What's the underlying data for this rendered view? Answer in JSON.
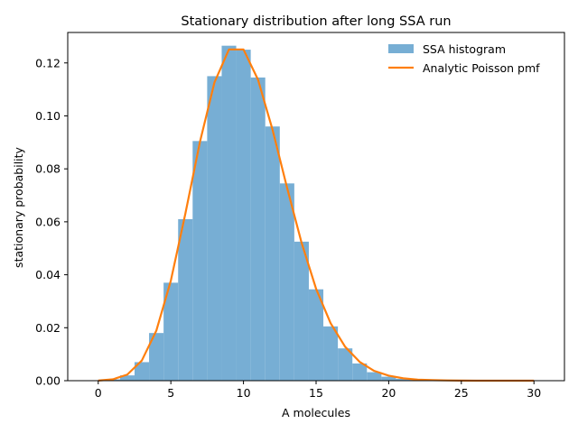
{
  "chart_data": {
    "type": "bar",
    "title": "Stationary distribution after long SSA run",
    "xlabel": "A molecules",
    "ylabel": "stationary probability",
    "xlim": [
      -2.1,
      32.1
    ],
    "ylim": [
      0,
      0.1315
    ],
    "xticks": [
      0,
      5,
      10,
      15,
      20,
      25,
      30
    ],
    "yticks": [
      0.0,
      0.02,
      0.04,
      0.06,
      0.08,
      0.1,
      0.12
    ],
    "ytick_labels": [
      "0.00",
      "0.02",
      "0.04",
      "0.06",
      "0.08",
      "0.10",
      "0.12"
    ],
    "legend_position": "top-right",
    "grid": false,
    "series": [
      {
        "name": "SSA histogram",
        "kind": "histogram",
        "color": "#77aed4",
        "bin_edges": [
          0.5,
          1.5,
          2.5,
          3.5,
          4.5,
          5.5,
          6.5,
          7.5,
          8.5,
          9.5,
          10.5,
          11.5,
          12.5,
          13.5,
          14.5,
          15.5,
          16.5,
          17.5,
          18.5,
          19.5,
          20.5,
          21.5,
          22.5,
          23.5
        ],
        "values": [
          0.0005,
          0.002,
          0.007,
          0.018,
          0.037,
          0.061,
          0.0905,
          0.115,
          0.1265,
          0.125,
          0.1145,
          0.096,
          0.0745,
          0.0525,
          0.0345,
          0.0205,
          0.0122,
          0.0065,
          0.0032,
          0.0015,
          0.0007,
          0.0003,
          0.0001
        ]
      },
      {
        "name": "Analytic Poisson pmf",
        "kind": "line",
        "color": "#ff7f0e",
        "x": [
          0,
          1,
          2,
          3,
          4,
          5,
          6,
          7,
          8,
          9,
          10,
          11,
          12,
          13,
          14,
          15,
          16,
          17,
          18,
          19,
          20,
          21,
          22,
          23,
          24,
          25,
          26,
          27,
          28,
          29,
          30
        ],
        "y": [
          5e-05,
          0.0005,
          0.0023,
          0.0076,
          0.0189,
          0.0378,
          0.0631,
          0.0901,
          0.1126,
          0.1251,
          0.1251,
          0.1137,
          0.0948,
          0.0729,
          0.0521,
          0.0347,
          0.0217,
          0.0128,
          0.0071,
          0.0037,
          0.0019,
          0.0009,
          0.0004,
          0.0002,
          0.0001,
          3e-05,
          1e-05,
          0.0,
          0.0,
          0.0,
          0.0
        ]
      }
    ]
  }
}
